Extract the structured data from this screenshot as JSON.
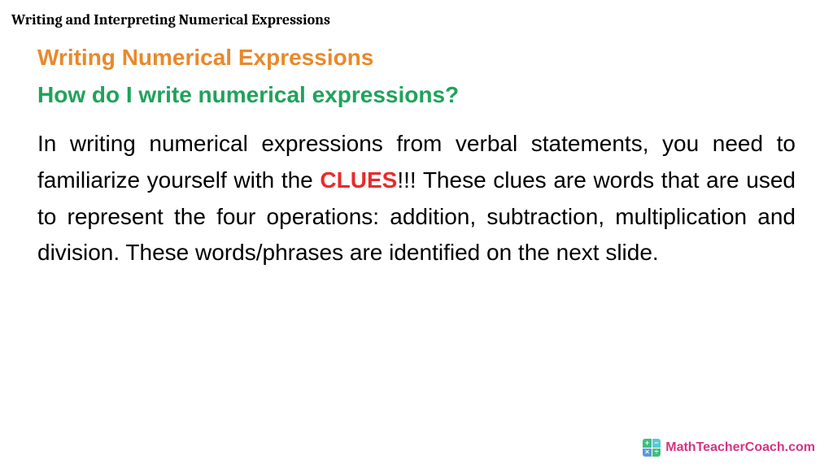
{
  "header": {
    "title": "Writing and Interpreting Numerical Expressions"
  },
  "content": {
    "title": "Writing Numerical Expressions",
    "subtitle": "How do I write numerical expressions?",
    "body_part1": "In writing numerical expressions from verbal statements, you need to familiarize yourself with the ",
    "clues_word": "CLUES",
    "body_part2": "!!! These clues are words that are used to represent the four operations: addition, subtraction, multiplication and division. These words/phrases are identified on the next slide."
  },
  "footer": {
    "brand": "MathTeacherCoach.com",
    "logo_symbols": {
      "tl": "+",
      "tr": "−",
      "bl": "×",
      "br": "÷"
    }
  },
  "colors": {
    "title_color": "#e8892b",
    "subtitle_color": "#1fa35a",
    "clues_color": "#e82b2b",
    "body_color": "#000000",
    "brand_color": "#d63384",
    "background": "#ffffff"
  },
  "typography": {
    "header_fontsize": 18,
    "title_fontsize": 28,
    "subtitle_fontsize": 28,
    "body_fontsize": 28,
    "brand_fontsize": 16
  }
}
